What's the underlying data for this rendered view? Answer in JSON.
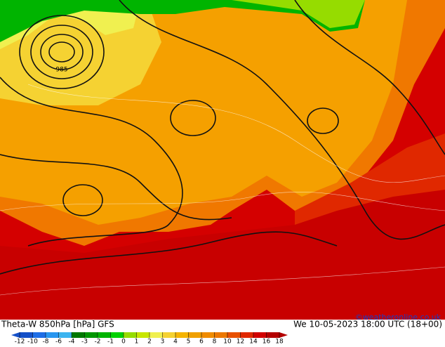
{
  "header": {
    "title": "Theta-W 850hPa [hPa] GFS",
    "datetime": "We 10-05-2023 18:00 UTC (18+00)"
  },
  "map": {
    "contour_label": "985",
    "credit": "©weatheronline.co.uk"
  },
  "colorbar": {
    "ticks": [
      -12,
      -10,
      -8,
      -6,
      -4,
      -3,
      -2,
      -1,
      0,
      1,
      2,
      3,
      4,
      5,
      6,
      8,
      10,
      12,
      14,
      16,
      18
    ],
    "colors": [
      "#1450c8",
      "#1e6ee6",
      "#2896f0",
      "#3cb4f0",
      "#007800",
      "#009600",
      "#00b400",
      "#00d200",
      "#96dc00",
      "#c8e600",
      "#f0f050",
      "#f5d232",
      "#f5b400",
      "#f0a000",
      "#f08c00",
      "#ec7800",
      "#e85000",
      "#e02800",
      "#d20000",
      "#b40000"
    ]
  }
}
